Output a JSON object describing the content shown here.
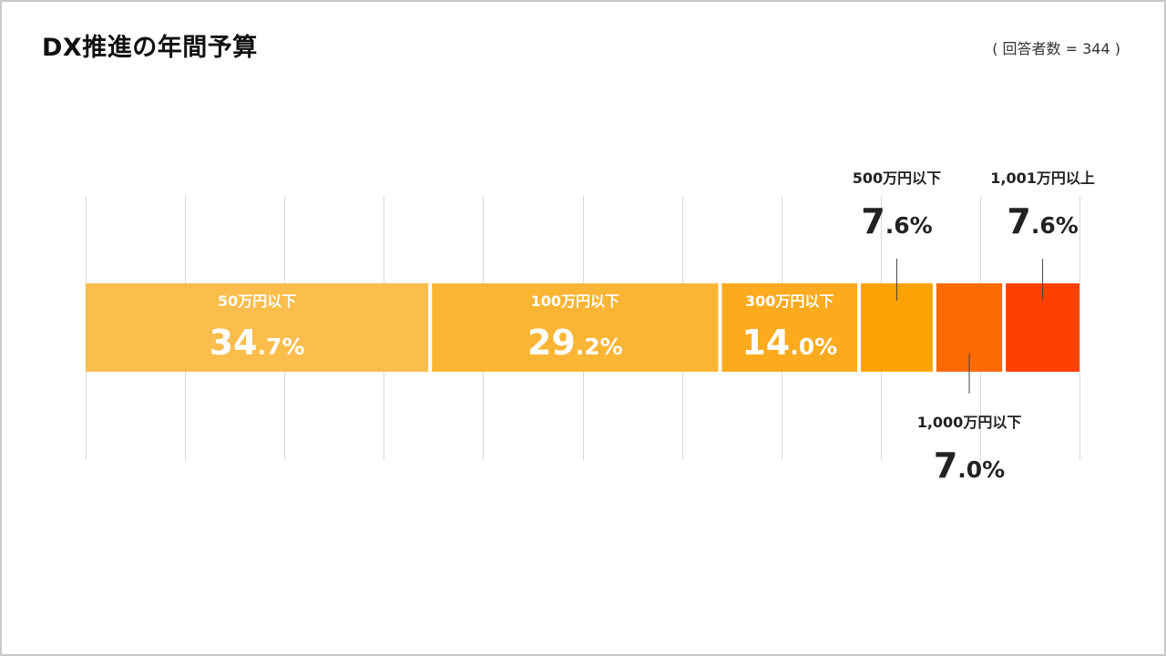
{
  "header": {
    "title": "DX推進の年間予算",
    "note": "( 回答者数 = 344 )"
  },
  "chart_data": {
    "type": "bar",
    "orientation": "horizontal-stacked-100",
    "categories": [
      "50万円以下",
      "100万円以下",
      "300万円以下",
      "500万円以下",
      "1,000万円以下",
      "1,001万円以上"
    ],
    "values": [
      34.7,
      29.2,
      14.0,
      7.6,
      7.0,
      7.6
    ],
    "unit": "%",
    "labels": [
      {
        "category": "50万円以下",
        "int": "34",
        "dec": ".7%",
        "position": "inside"
      },
      {
        "category": "100万円以下",
        "int": "29",
        "dec": ".2%",
        "position": "inside"
      },
      {
        "category": "300万円以下",
        "int": "14",
        "dec": ".0%",
        "position": "inside"
      },
      {
        "category": "500万円以下",
        "int": "7",
        "dec": ".6%",
        "position": "above"
      },
      {
        "category": "1,000万円以下",
        "int": "7",
        "dec": ".0%",
        "position": "below"
      },
      {
        "category": "1,001万円以上",
        "int": "7",
        "dec": ".6%",
        "position": "above"
      }
    ],
    "colors": [
      "#fbbd4b",
      "#fbb535",
      "#fcaa1e",
      "#fda203",
      "#fd6a04",
      "#fe4103"
    ],
    "xlim": [
      0,
      100
    ],
    "grid": true,
    "legend": "none",
    "title": "DX推進の年間予算",
    "xlabel": "",
    "ylabel": ""
  }
}
